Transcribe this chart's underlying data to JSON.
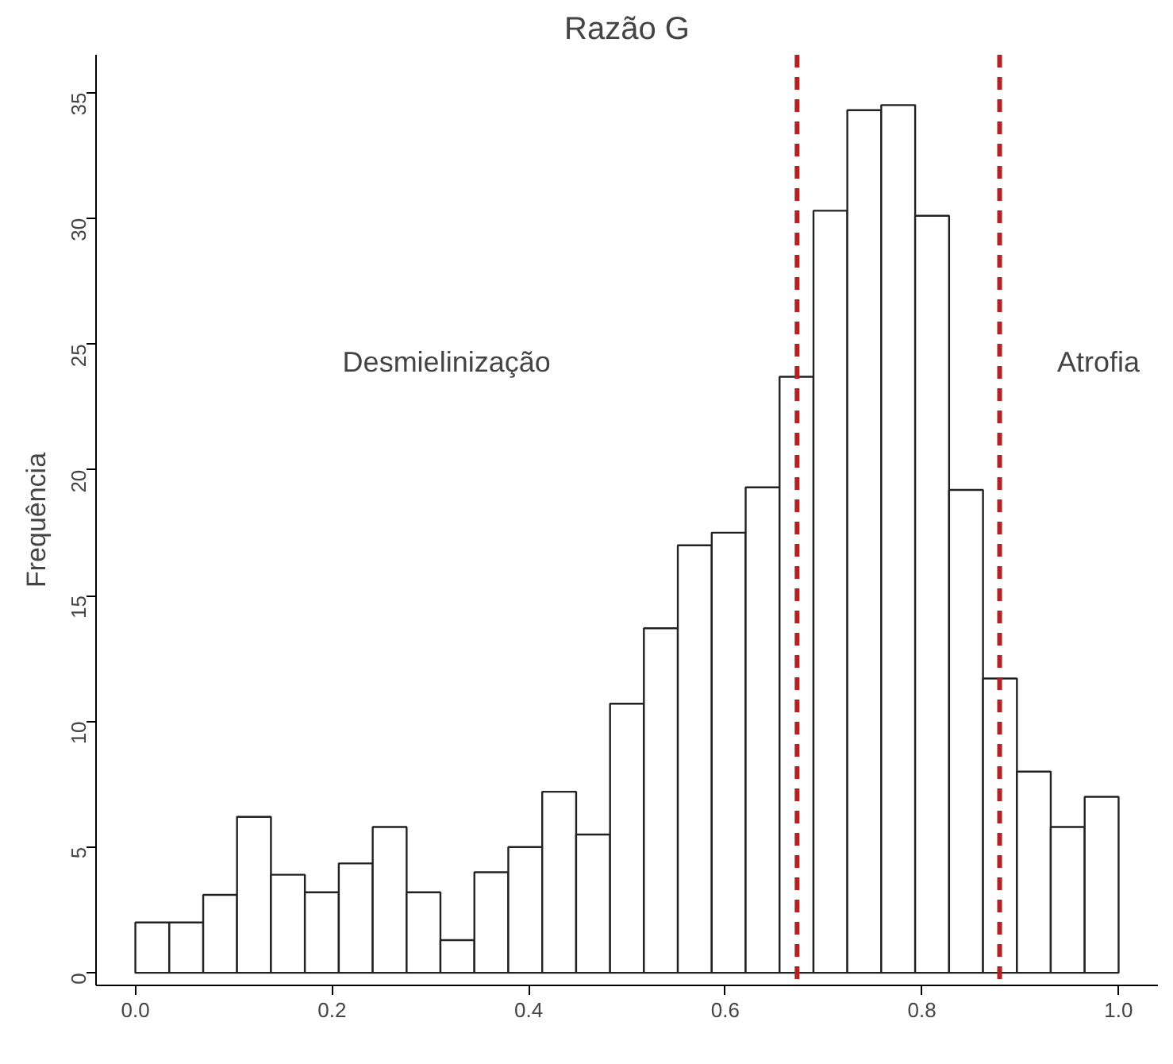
{
  "chart_data": {
    "type": "histogram",
    "title": "Razão G",
    "ylabel": "Frequência",
    "bins": [
      0,
      0.0345,
      0.069,
      0.1034,
      0.1379,
      0.1724,
      0.2069,
      0.2414,
      0.2759,
      0.3103,
      0.3448,
      0.3793,
      0.4138,
      0.4483,
      0.4828,
      0.5172,
      0.5517,
      0.5862,
      0.6207,
      0.6552,
      0.6897,
      0.7241,
      0.7586,
      0.7931,
      0.8276,
      0.8621,
      0.8966,
      0.931,
      0.9655,
      1.0
    ],
    "values": [
      2.0,
      2.0,
      3.1,
      6.2,
      3.9,
      3.2,
      4.35,
      5.8,
      3.2,
      1.3,
      4.0,
      5.0,
      7.2,
      5.5,
      10.7,
      13.7,
      17.0,
      17.5,
      19.3,
      23.7,
      30.3,
      34.3,
      34.5,
      30.1,
      19.2,
      11.7,
      8.0,
      5.8,
      7.0
    ],
    "color": "#ffffff",
    "xlim": [
      -0.04,
      1.04
    ],
    "ylim": [
      -0.5,
      36.5
    ],
    "xticks": [
      {
        "value": 0,
        "label": "0.0"
      },
      0.2,
      0.4,
      0.6,
      0.8,
      {
        "value": 1,
        "label": "1.0"
      }
    ],
    "yticks": [
      0,
      5,
      10,
      15,
      20,
      25,
      30,
      35
    ],
    "grid": false,
    "ref_lines": [
      {
        "axis": "x",
        "value": 0.673,
        "label": null,
        "color": "#b22222",
        "line_style": "dashed"
      },
      {
        "axis": "x",
        "value": 0.879,
        "label": null,
        "color": "#b22222",
        "line_style": "dashed"
      }
    ],
    "annotations": [
      "Desmielinização",
      "Atrofia"
    ]
  }
}
